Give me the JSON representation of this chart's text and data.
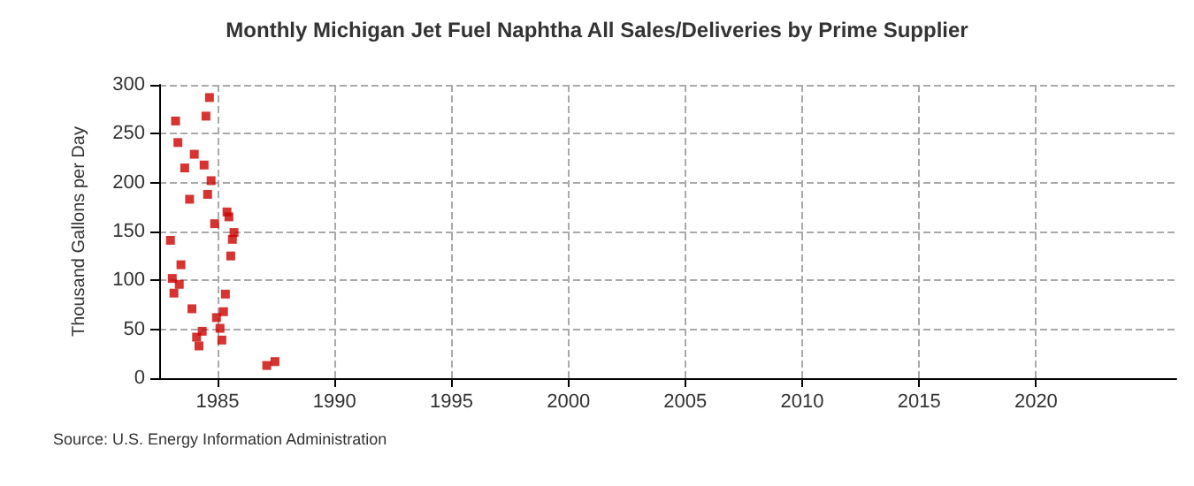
{
  "chart_data": {
    "type": "scatter",
    "title": "Monthly Michigan Jet Fuel Naphtha All Sales/Deliveries by Prime Supplier",
    "ylabel": "Thousand Gallons per Day",
    "annotations": [
      "Source: U.S. Energy Information Administration"
    ],
    "x": [
      1982.98,
      1983.06,
      1983.13,
      1983.2,
      1983.3,
      1983.36,
      1983.43,
      1983.59,
      1983.8,
      1983.9,
      1984.0,
      1984.1,
      1984.2,
      1984.34,
      1984.42,
      1984.5,
      1984.57,
      1984.65,
      1984.72,
      1984.87,
      1984.95,
      1985.1,
      1985.18,
      1985.25,
      1985.33,
      1985.4,
      1985.48,
      1985.56,
      1985.63,
      1985.7,
      1987.1,
      1987.45
    ],
    "series": [
      {
        "color": "#cc0000",
        "values": [
          141,
          102,
          87,
          263,
          241,
          96,
          116,
          215,
          183,
          71,
          229,
          42,
          33,
          48,
          218,
          268,
          188,
          287,
          202,
          158,
          62,
          51,
          39,
          68,
          86,
          170,
          165,
          125,
          142,
          149,
          13,
          17
        ]
      }
    ],
    "xlim": [
      1982.5,
      2026
    ],
    "xticks": [
      1985,
      1990,
      1995,
      2000,
      2005,
      2010,
      2015,
      2020
    ],
    "ylim": [
      0,
      300
    ],
    "yticks": [
      0,
      50,
      100,
      150,
      200,
      250,
      300
    ],
    "grid": true,
    "marker": "square"
  }
}
